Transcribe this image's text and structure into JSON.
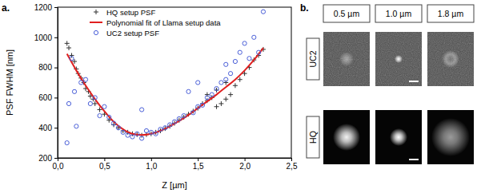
{
  "chart_data": {
    "type": "scatter",
    "title": "a.",
    "x_label": "Z [µm]",
    "y_label": "PSF FWHM [nm]",
    "xlim": [
      0,
      2.5
    ],
    "ylim": [
      200,
      1200
    ],
    "xticks": [
      {
        "value": 0,
        "label": "0,0"
      },
      {
        "value": 0.5,
        "label": "0,5"
      },
      {
        "value": 1,
        "label": "1,0"
      },
      {
        "value": 1.5,
        "label": "1,5"
      },
      {
        "value": 2,
        "label": "2,0"
      },
      {
        "value": 2.5,
        "label": "2,5"
      }
    ],
    "yticks": [
      200,
      400,
      600,
      800,
      1000,
      1200
    ],
    "grid": false,
    "legend": "top-left",
    "series": [
      {
        "name": "HQ setup PSF",
        "type": "scatter",
        "marker": "plus",
        "color": "#333333",
        "x": [
          0.1,
          0.12,
          0.15,
          0.18,
          0.2,
          0.22,
          0.25,
          0.28,
          0.3,
          0.33,
          0.35,
          0.38,
          0.4,
          0.45,
          0.5,
          0.55,
          0.6,
          0.65,
          0.7,
          0.75,
          0.8,
          0.85,
          0.9,
          0.95,
          1.0,
          1.05,
          1.1,
          1.15,
          1.2,
          1.25,
          1.3,
          1.35,
          1.4,
          1.45,
          1.5,
          1.55,
          1.6,
          1.65,
          1.7,
          1.75,
          1.8,
          1.85,
          1.9,
          1.95,
          2.0,
          2.05,
          2.1,
          2.15,
          2.2,
          1.6,
          1.7,
          1.8
        ],
        "values": [
          960,
          930,
          880,
          840,
          790,
          760,
          730,
          700,
          660,
          640,
          610,
          590,
          560,
          520,
          490,
          450,
          420,
          400,
          380,
          370,
          360,
          355,
          350,
          355,
          360,
          370,
          380,
          395,
          410,
          430,
          450,
          470,
          490,
          510,
          530,
          560,
          580,
          600,
          540,
          560,
          590,
          620,
          680,
          720,
          760,
          800,
          850,
          880,
          920,
          620,
          650,
          700
        ]
      },
      {
        "name": "Polynomial fit of Llama setup data",
        "type": "line",
        "line_style": "solid",
        "color": "#e02020",
        "x": [
          0.1,
          0.2,
          0.3,
          0.4,
          0.5,
          0.6,
          0.7,
          0.8,
          0.9,
          1.0,
          1.1,
          1.2,
          1.3,
          1.4,
          1.5,
          1.6,
          1.7,
          1.8,
          1.9,
          2.0,
          2.1,
          2.2
        ],
        "values": [
          890,
          780,
          680,
          590,
          510,
          440,
          390,
          360,
          352,
          360,
          380,
          410,
          445,
          485,
          530,
          575,
          620,
          670,
          720,
          780,
          850,
          930
        ]
      },
      {
        "name": "UC2 setup PSF",
        "type": "scatter",
        "marker": "circle",
        "color": "#4a5fd8",
        "x": [
          0.1,
          0.12,
          0.15,
          0.18,
          0.2,
          0.25,
          0.3,
          0.35,
          0.4,
          0.45,
          0.5,
          0.55,
          0.6,
          0.65,
          0.7,
          0.75,
          0.8,
          0.85,
          0.9,
          0.95,
          1.0,
          1.05,
          1.1,
          1.15,
          1.2,
          1.25,
          1.3,
          1.35,
          1.4,
          1.45,
          1.5,
          1.55,
          1.6,
          1.65,
          1.7,
          1.75,
          1.8,
          1.85,
          1.9,
          1.95,
          2.0,
          2.05,
          2.1,
          2.15,
          2.2,
          1.5,
          0.9,
          1.8
        ],
        "values": [
          300,
          560,
          860,
          640,
          410,
          700,
          720,
          560,
          600,
          480,
          540,
          470,
          430,
          400,
          370,
          350,
          340,
          360,
          330,
          380,
          370,
          360,
          390,
          400,
          420,
          440,
          460,
          480,
          640,
          500,
          540,
          550,
          600,
          620,
          660,
          700,
          720,
          760,
          840,
          900,
          960,
          860,
          1000,
          900,
          1170,
          700,
          520,
          820
        ]
      }
    ]
  },
  "image_panel": {
    "label": "b.",
    "columns": [
      "0.5 µm",
      "1.0 µm",
      "1.8 µm"
    ],
    "rows": [
      "UC2",
      "HQ"
    ]
  }
}
